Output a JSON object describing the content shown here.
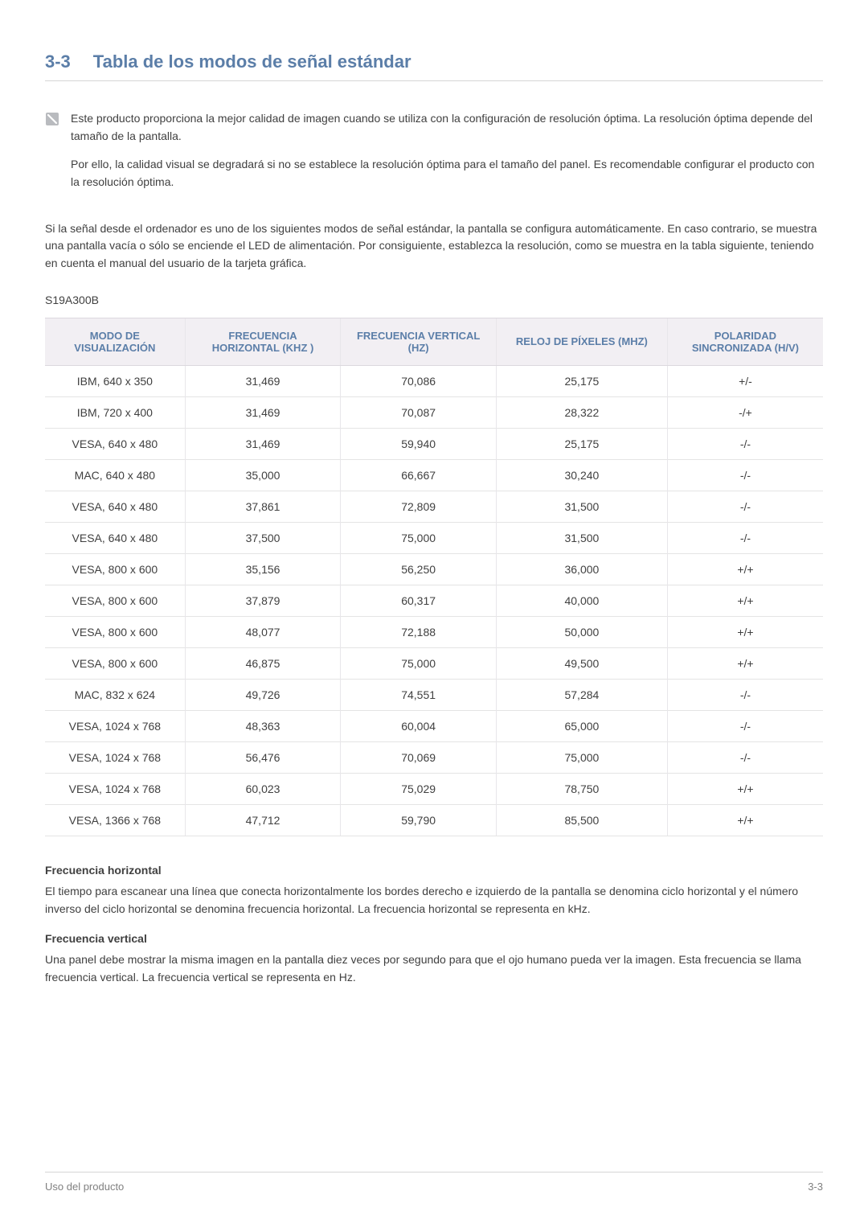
{
  "heading": {
    "number": "3-3",
    "title": "Tabla de los modos de señal estándar"
  },
  "note": {
    "icon_name": "info-icon",
    "paragraphs": [
      "Este producto proporciona la mejor calidad de imagen cuando se utiliza con la configuración de resolución óptima. La resolución óptima depende del tamaño de la pantalla.",
      "Por ello, la calidad visual se degradará si no se establece la resolución óptima para el tamaño del panel. Es recomendable configurar el producto con la resolución óptima."
    ]
  },
  "intro_paragraph": "Si la señal desde el ordenador es uno de los siguientes modos de señal estándar, la pantalla se configura automáticamente. En caso contrario, se muestra una pantalla vacía o sólo se enciende el LED de alimentación. Por consiguiente, establezca la resolución, como se muestra en la tabla siguiente, teniendo en cuenta el manual del usuario de la tarjeta gráfica.",
  "model": "S19A300B",
  "table": {
    "columns": [
      "MODO DE VISUALIZACIÓN",
      "FRECUENCIA HORIZONTAL (KHZ )",
      "FRECUENCIA VERTICAL (HZ)",
      "RELOJ DE PÍXELES (MHZ)",
      "POLARIDAD SINCRONIZADA (H/V)"
    ],
    "rows": [
      [
        "IBM, 640 x 350",
        "31,469",
        "70,086",
        "25,175",
        "+/-"
      ],
      [
        "IBM, 720 x 400",
        "31,469",
        "70,087",
        "28,322",
        "-/+"
      ],
      [
        "VESA, 640 x 480",
        "31,469",
        "59,940",
        "25,175",
        "-/-"
      ],
      [
        "MAC, 640 x 480",
        "35,000",
        "66,667",
        "30,240",
        "-/-"
      ],
      [
        "VESA, 640 x 480",
        "37,861",
        "72,809",
        "31,500",
        "-/-"
      ],
      [
        "VESA, 640 x 480",
        "37,500",
        "75,000",
        "31,500",
        "-/-"
      ],
      [
        "VESA, 800 x 600",
        "35,156",
        "56,250",
        "36,000",
        "+/+"
      ],
      [
        "VESA, 800 x 600",
        "37,879",
        "60,317",
        "40,000",
        "+/+"
      ],
      [
        "VESA, 800 x 600",
        "48,077",
        "72,188",
        "50,000",
        "+/+"
      ],
      [
        "VESA, 800 x 600",
        "46,875",
        "75,000",
        "49,500",
        "+/+"
      ],
      [
        "MAC, 832 x 624",
        "49,726",
        "74,551",
        "57,284",
        "-/-"
      ],
      [
        "VESA, 1024 x 768",
        "48,363",
        "60,004",
        "65,000",
        "-/-"
      ],
      [
        "VESA, 1024 x 768",
        "56,476",
        "70,069",
        "75,000",
        "-/-"
      ],
      [
        "VESA, 1024 x 768",
        "60,023",
        "75,029",
        "78,750",
        "+/+"
      ],
      [
        "VESA, 1366 x 768",
        "47,712",
        "59,790",
        "85,500",
        "+/+"
      ]
    ]
  },
  "definitions": [
    {
      "title": "Frecuencia horizontal",
      "body": "El tiempo para escanear una línea que conecta horizontalmente los bordes derecho e izquierdo de la pantalla se denomina ciclo horizontal y el número inverso del ciclo horizontal se denomina frecuencia horizontal. La frecuencia horizontal se representa en kHz."
    },
    {
      "title": "Frecuencia vertical",
      "body": "Una panel debe mostrar la misma imagen en la pantalla diez veces por segundo para que el ojo humano pueda ver la imagen. Esta frecuencia se llama frecuencia vertical. La frecuencia vertical se representa en Hz."
    }
  ],
  "footer": {
    "left": "Uso del producto",
    "right": "3-3"
  }
}
